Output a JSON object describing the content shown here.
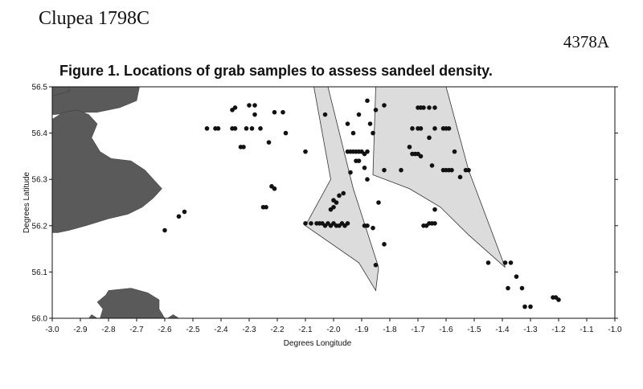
{
  "header": {
    "left": "Clupea 1798C",
    "right": "4378A"
  },
  "figure": {
    "title": "Figure 1. Locations of grab samples to assess sandeel density."
  },
  "chart_data": {
    "type": "scatter",
    "title": "Figure 1. Locations of grab samples to assess sandeel density.",
    "xlabel": "Degrees Longitude",
    "ylabel": "Degrees Latitude",
    "xlim": [
      -3.0,
      -1.0
    ],
    "ylim": [
      56.0,
      56.5
    ],
    "xticks": [
      "-3.0",
      "-2.9",
      "-2.8",
      "-2.7",
      "-2.6",
      "-2.5",
      "-2.4",
      "-2.3",
      "-2.2",
      "-2.1",
      "-2.0",
      "-1.9",
      "-1.8",
      "-1.7",
      "-1.6",
      "-1.5",
      "-1.4",
      "-1.3",
      "-1.2",
      "-1.1",
      "-1.0"
    ],
    "yticks": [
      "56.0",
      "56.1",
      "56.2",
      "56.3",
      "56.4",
      "56.5"
    ],
    "colors": {
      "land": "#5a5a5a",
      "zone": "#dcdcdc",
      "points": "#111111"
    },
    "grid": false,
    "land": [
      [
        [
          -3.0,
          56.5
        ],
        [
          -2.69,
          56.5
        ],
        [
          -2.7,
          56.47
        ],
        [
          -2.76,
          56.455
        ],
        [
          -2.84,
          56.445
        ],
        [
          -2.92,
          56.445
        ],
        [
          -2.99,
          56.44
        ],
        [
          -3.0,
          56.44
        ]
      ],
      [
        [
          -2.96,
          56.445
        ],
        [
          -2.91,
          56.45
        ],
        [
          -2.87,
          56.44
        ],
        [
          -2.84,
          56.42
        ],
        [
          -2.86,
          56.39
        ],
        [
          -2.83,
          56.36
        ],
        [
          -2.79,
          56.345
        ],
        [
          -2.72,
          56.34
        ],
        [
          -2.67,
          56.32
        ],
        [
          -2.64,
          56.3
        ],
        [
          -2.61,
          56.28
        ],
        [
          -2.64,
          56.26
        ],
        [
          -2.68,
          56.24
        ],
        [
          -2.73,
          56.225
        ],
        [
          -2.8,
          56.215
        ],
        [
          -2.88,
          56.2
        ],
        [
          -2.94,
          56.19
        ],
        [
          -2.98,
          56.185
        ],
        [
          -3.0,
          56.185
        ],
        [
          -3.0,
          56.43
        ]
      ],
      [
        [
          -3.0,
          56.5
        ],
        [
          -2.94,
          56.5
        ],
        [
          -2.94,
          56.49
        ],
        [
          -3.0,
          56.48
        ]
      ],
      [
        [
          -2.83,
          56.0
        ],
        [
          -2.82,
          56.02
        ],
        [
          -2.84,
          56.035
        ],
        [
          -2.81,
          56.05
        ],
        [
          -2.8,
          56.06
        ],
        [
          -2.72,
          56.065
        ],
        [
          -2.66,
          56.055
        ],
        [
          -2.62,
          56.04
        ],
        [
          -2.62,
          56.02
        ],
        [
          -2.6,
          56.0
        ]
      ],
      [
        [
          -2.59,
          56.0
        ],
        [
          -2.57,
          56.008
        ],
        [
          -2.55,
          56.0
        ]
      ],
      [
        [
          -2.87,
          56.0
        ],
        [
          -2.86,
          56.008
        ],
        [
          -2.84,
          56.0
        ]
      ]
    ],
    "zones": [
      [
        [
          -2.07,
          56.5
        ],
        [
          -2.02,
          56.5
        ],
        [
          -1.93,
          56.28
        ],
        [
          -1.84,
          56.11
        ],
        [
          -1.85,
          56.06
        ],
        [
          -1.91,
          56.12
        ],
        [
          -2.1,
          56.2
        ],
        [
          -2.01,
          56.3
        ]
      ],
      [
        [
          -1.85,
          56.5
        ],
        [
          -1.6,
          56.5
        ],
        [
          -1.52,
          56.32
        ],
        [
          -1.39,
          56.11
        ],
        [
          -1.52,
          56.18
        ],
        [
          -1.62,
          56.24
        ],
        [
          -1.73,
          56.28
        ],
        [
          -1.86,
          56.31
        ]
      ]
    ],
    "points": [
      [
        -2.45,
        56.41
      ],
      [
        -2.42,
        56.41
      ],
      [
        -2.41,
        56.41
      ],
      [
        -2.36,
        56.45
      ],
      [
        -2.35,
        56.455
      ],
      [
        -2.36,
        56.41
      ],
      [
        -2.35,
        56.41
      ],
      [
        -2.33,
        56.37
      ],
      [
        -2.32,
        56.37
      ],
      [
        -2.3,
        56.46
      ],
      [
        -2.28,
        56.46
      ],
      [
        -2.31,
        56.41
      ],
      [
        -2.29,
        56.41
      ],
      [
        -2.28,
        56.44
      ],
      [
        -2.26,
        56.41
      ],
      [
        -2.23,
        56.38
      ],
      [
        -2.21,
        56.445
      ],
      [
        -2.18,
        56.445
      ],
      [
        -2.17,
        56.4
      ],
      [
        -2.24,
        56.24
      ],
      [
        -2.25,
        56.24
      ],
      [
        -2.22,
        56.285
      ],
      [
        -2.21,
        56.28
      ],
      [
        -2.6,
        56.19
      ],
      [
        -2.55,
        56.22
      ],
      [
        -2.53,
        56.23
      ],
      [
        -2.1,
        56.36
      ],
      [
        -2.03,
        56.44
      ],
      [
        -2.1,
        56.205
      ],
      [
        -2.08,
        56.205
      ],
      [
        -2.06,
        56.205
      ],
      [
        -2.05,
        56.205
      ],
      [
        -2.04,
        56.205
      ],
      [
        -2.03,
        56.2
      ],
      [
        -2.02,
        56.205
      ],
      [
        -2.01,
        56.2
      ],
      [
        -2.0,
        56.205
      ],
      [
        -1.99,
        56.2
      ],
      [
        -1.98,
        56.2
      ],
      [
        -1.97,
        56.205
      ],
      [
        -1.96,
        56.2
      ],
      [
        -1.95,
        56.205
      ],
      [
        -2.0,
        56.24
      ],
      [
        -2.01,
        56.235
      ],
      [
        -1.99,
        56.25
      ],
      [
        -2.0,
        56.255
      ],
      [
        -1.98,
        56.265
      ],
      [
        -1.965,
        56.27
      ],
      [
        -1.95,
        56.42
      ],
      [
        -1.93,
        56.4
      ],
      [
        -1.91,
        56.44
      ],
      [
        -1.88,
        56.47
      ],
      [
        -1.87,
        56.42
      ],
      [
        -1.86,
        56.4
      ],
      [
        -1.95,
        56.36
      ],
      [
        -1.94,
        56.36
      ],
      [
        -1.93,
        56.36
      ],
      [
        -1.92,
        56.36
      ],
      [
        -1.91,
        56.36
      ],
      [
        -1.9,
        56.36
      ],
      [
        -1.89,
        56.355
      ],
      [
        -1.88,
        56.36
      ],
      [
        -1.92,
        56.34
      ],
      [
        -1.91,
        56.34
      ],
      [
        -1.89,
        56.325
      ],
      [
        -1.88,
        56.3
      ],
      [
        -1.94,
        56.315
      ],
      [
        -1.85,
        56.45
      ],
      [
        -1.84,
        56.25
      ],
      [
        -1.89,
        56.2
      ],
      [
        -1.88,
        56.2
      ],
      [
        -1.86,
        56.195
      ],
      [
        -1.82,
        56.16
      ],
      [
        -1.85,
        56.115
      ],
      [
        -1.82,
        56.46
      ],
      [
        -1.82,
        56.32
      ],
      [
        -1.7,
        56.455
      ],
      [
        -1.69,
        56.455
      ],
      [
        -1.68,
        56.455
      ],
      [
        -1.66,
        56.455
      ],
      [
        -1.64,
        56.455
      ],
      [
        -1.72,
        56.41
      ],
      [
        -1.7,
        56.41
      ],
      [
        -1.69,
        56.41
      ],
      [
        -1.64,
        56.41
      ],
      [
        -1.61,
        56.41
      ],
      [
        -1.6,
        56.41
      ],
      [
        -1.59,
        56.41
      ],
      [
        -1.73,
        56.37
      ],
      [
        -1.72,
        56.355
      ],
      [
        -1.71,
        56.355
      ],
      [
        -1.7,
        56.355
      ],
      [
        -1.69,
        56.35
      ],
      [
        -1.76,
        56.32
      ],
      [
        -1.66,
        56.39
      ],
      [
        -1.65,
        56.33
      ],
      [
        -1.61,
        56.32
      ],
      [
        -1.6,
        56.32
      ],
      [
        -1.59,
        56.32
      ],
      [
        -1.58,
        56.32
      ],
      [
        -1.57,
        56.36
      ],
      [
        -1.55,
        56.305
      ],
      [
        -1.53,
        56.32
      ],
      [
        -1.52,
        56.32
      ],
      [
        -1.68,
        56.2
      ],
      [
        -1.67,
        56.2
      ],
      [
        -1.66,
        56.205
      ],
      [
        -1.65,
        56.205
      ],
      [
        -1.64,
        56.205
      ],
      [
        -1.64,
        56.235
      ],
      [
        -1.45,
        56.12
      ],
      [
        -1.39,
        56.12
      ],
      [
        -1.37,
        56.12
      ],
      [
        -1.38,
        56.065
      ],
      [
        -1.35,
        56.09
      ],
      [
        -1.33,
        56.065
      ],
      [
        -1.32,
        56.025
      ],
      [
        -1.3,
        56.025
      ],
      [
        -1.22,
        56.045
      ],
      [
        -1.21,
        56.045
      ],
      [
        -1.2,
        56.04
      ]
    ]
  }
}
